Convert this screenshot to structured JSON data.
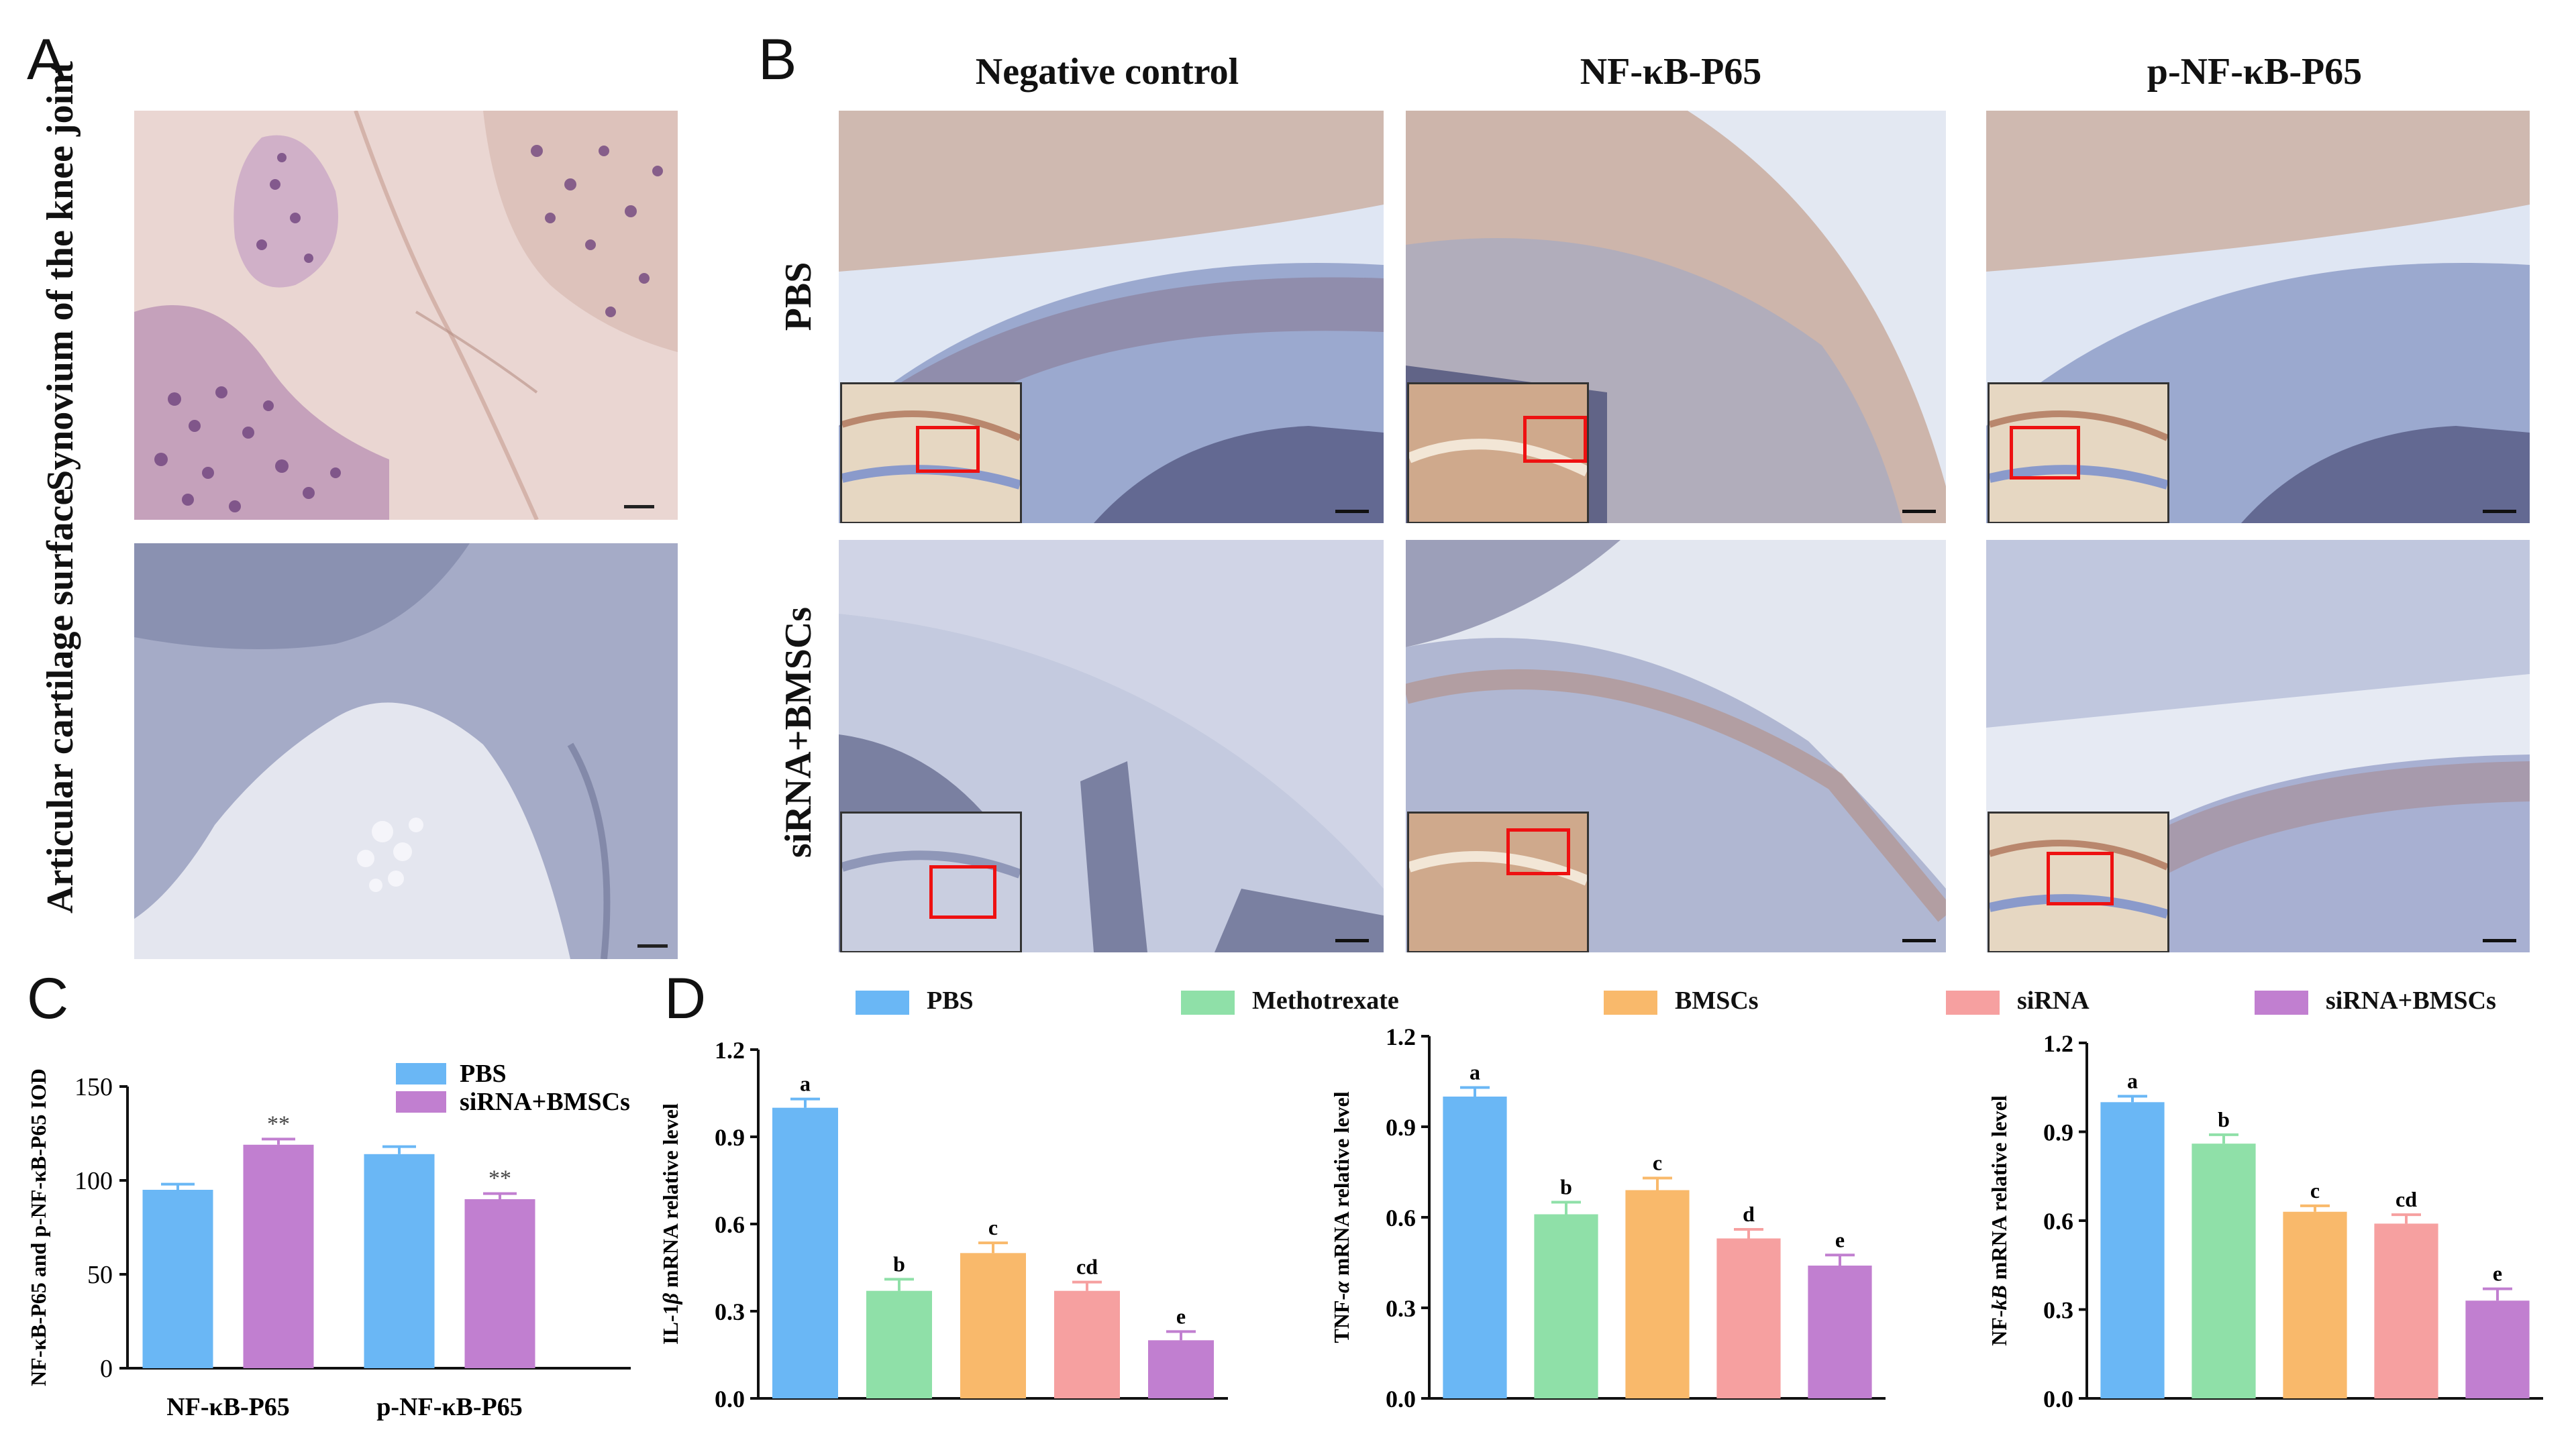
{
  "panels": {
    "A": {
      "label": "A",
      "rows": [
        "Synovium of the knee joint",
        "Articular cartilage surface"
      ]
    },
    "B": {
      "label": "B",
      "columns": [
        "Negative control",
        "NF-κB-P65",
        "p-NF-κB-P65"
      ],
      "rows": [
        "PBS",
        "siRNA+BMSCs"
      ]
    },
    "C": {
      "label": "C"
    },
    "D": {
      "label": "D"
    }
  },
  "legend_D": [
    "PBS",
    "Methotrexate",
    "BMSCs",
    "siRNA",
    "siRNA+BMSCs"
  ],
  "colors": {
    "PBS": "#6ab7f5",
    "Methotrexate": "#8fe0a8",
    "BMSCs": "#f9b96b",
    "siRNA": "#f6a0a0",
    "siRNA+BMSCs": "#c17fd0"
  },
  "chart_data": [
    {
      "id": "C",
      "type": "bar",
      "ylabel": "NF-κB-P65 and p-NF-κB-P65 IOD",
      "ylim": [
        0,
        150
      ],
      "yticks": [
        0,
        50,
        100,
        150
      ],
      "categories": [
        "NF-κB-P65",
        "p-NF-κB-P65"
      ],
      "series": [
        {
          "name": "PBS",
          "values": [
            95,
            114
          ],
          "errors": [
            3,
            4
          ],
          "annotations": [
            "",
            ""
          ]
        },
        {
          "name": "siRNA+BMSCs",
          "values": [
            119,
            90
          ],
          "errors": [
            3,
            3
          ],
          "annotations": [
            "**",
            "**"
          ]
        }
      ],
      "legend": [
        "PBS",
        "siRNA+BMSCs"
      ]
    },
    {
      "id": "D1",
      "type": "bar",
      "ylabel_prefix": "IL-1",
      "ylabel_italic": "β",
      "ylabel_suffix": " mRNA relative level",
      "ylim": [
        0,
        1.2
      ],
      "yticks": [
        "0.0",
        "0.3",
        "0.6",
        "0.9",
        "1.2"
      ],
      "categories": [
        "PBS",
        "Methotrexate",
        "BMSCs",
        "siRNA",
        "siRNA+BMSCs"
      ],
      "values": [
        1.0,
        0.37,
        0.5,
        0.37,
        0.2
      ],
      "errors": [
        0.03,
        0.04,
        0.035,
        0.03,
        0.03
      ],
      "letters": [
        "a",
        "b",
        "c",
        "cd",
        "e"
      ]
    },
    {
      "id": "D2",
      "type": "bar",
      "ylabel_prefix": "TNF-",
      "ylabel_italic": "α",
      "ylabel_suffix": " mRNA relative level",
      "ylim": [
        0,
        1.2
      ],
      "yticks": [
        "0.0",
        "0.3",
        "0.6",
        "0.9",
        "1.2"
      ],
      "categories": [
        "PBS",
        "Methotrexate",
        "BMSCs",
        "siRNA",
        "siRNA+BMSCs"
      ],
      "values": [
        1.0,
        0.61,
        0.69,
        0.53,
        0.44
      ],
      "errors": [
        0.03,
        0.04,
        0.04,
        0.03,
        0.035
      ],
      "letters": [
        "a",
        "b",
        "c",
        "d",
        "e"
      ]
    },
    {
      "id": "D3",
      "type": "bar",
      "ylabel_prefix": "NF-",
      "ylabel_italic": "kB",
      "ylabel_suffix": " mRNA relative level",
      "ylim": [
        0,
        1.2
      ],
      "yticks": [
        "0.0",
        "0.3",
        "0.6",
        "0.9",
        "1.2"
      ],
      "categories": [
        "PBS",
        "Methotrexate",
        "BMSCs",
        "siRNA",
        "siRNA+BMSCs"
      ],
      "values": [
        1.0,
        0.86,
        0.63,
        0.59,
        0.33
      ],
      "errors": [
        0.02,
        0.03,
        0.02,
        0.03,
        0.04
      ],
      "letters": [
        "a",
        "b",
        "c",
        "cd",
        "e"
      ]
    }
  ]
}
